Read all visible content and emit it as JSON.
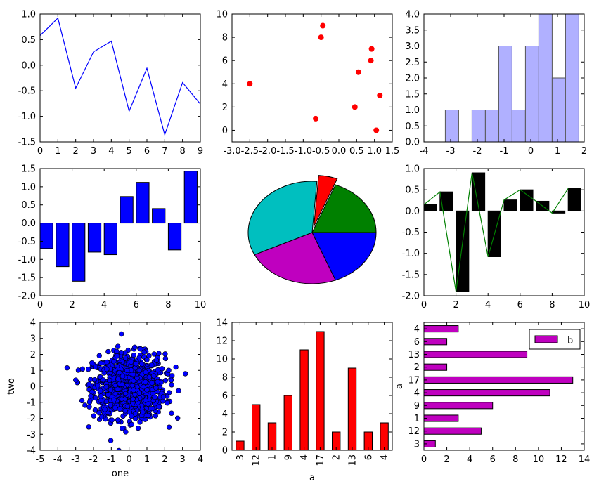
{
  "chart_data": [
    {
      "type": "line",
      "x": [
        0,
        1,
        2,
        3,
        4,
        5,
        6,
        7,
        8,
        9
      ],
      "series": [
        {
          "values": [
            0.58,
            0.92,
            -0.45,
            0.26,
            0.47,
            -0.9,
            -0.06,
            -1.36,
            -0.34,
            -0.76
          ],
          "color": "#0000ff"
        }
      ],
      "xlim": [
        0,
        9
      ],
      "ylim": [
        -1.5,
        1.0
      ],
      "xticks": [
        0,
        1,
        2,
        3,
        4,
        5,
        6,
        7,
        8,
        9
      ],
      "yticks": [
        -1.5,
        -1.0,
        -0.5,
        0.0,
        0.5,
        1.0
      ]
    },
    {
      "type": "scatter",
      "x": [
        -2.5,
        -0.65,
        -0.5,
        -0.45,
        0.45,
        0.55,
        0.9,
        0.92,
        1.05,
        1.15
      ],
      "y": [
        4,
        1,
        8,
        9,
        2,
        5,
        6,
        7,
        0,
        3
      ],
      "color": "#ff0000",
      "xlim": [
        -3.0,
        1.5
      ],
      "ylim": [
        -1,
        10
      ],
      "xticks": [
        -3.0,
        -2.5,
        -2.0,
        -1.5,
        -1.0,
        -0.5,
        0.0,
        0.5,
        1.0,
        1.5
      ],
      "yticks": [
        0,
        2,
        4,
        6,
        8,
        10
      ]
    },
    {
      "type": "bar",
      "subtype": "histogram",
      "bins": [
        [
          -3.2,
          -2.7
        ],
        [
          -2.7,
          -2.2
        ],
        [
          -2.2,
          -1.7
        ],
        [
          -1.7,
          -1.2
        ],
        [
          -1.2,
          -0.7
        ],
        [
          -0.7,
          -0.2
        ],
        [
          -0.2,
          0.3
        ],
        [
          0.3,
          0.8
        ],
        [
          0.8,
          1.3
        ],
        [
          1.3,
          1.8
        ]
      ],
      "values": [
        1,
        0,
        1,
        1,
        3,
        1,
        3,
        4,
        2,
        4
      ],
      "color": "#b0b0ff",
      "xlim": [
        -4,
        2
      ],
      "ylim": [
        0,
        4.0
      ],
      "xticks": [
        -4,
        -3,
        -2,
        -1,
        0,
        1,
        2
      ],
      "yticks": [
        0.0,
        0.5,
        1.0,
        1.5,
        2.0,
        2.5,
        3.0,
        3.5,
        4.0
      ]
    },
    {
      "type": "bar",
      "x": [
        0,
        1,
        2,
        3,
        4,
        5,
        6,
        7,
        8,
        9
      ],
      "values": [
        -0.7,
        -1.2,
        -1.6,
        -0.8,
        -0.87,
        0.73,
        1.12,
        0.4,
        -0.74,
        1.43
      ],
      "color": "#0000ff",
      "xlim": [
        0,
        10
      ],
      "ylim": [
        -2.0,
        1.5
      ],
      "xticks": [
        0,
        2,
        4,
        6,
        8,
        10
      ],
      "yticks": [
        -2.0,
        -1.5,
        -1.0,
        -0.5,
        0.0,
        0.5,
        1.0,
        1.5
      ]
    },
    {
      "type": "pie",
      "values": [
        20,
        25,
        35,
        5,
        20
      ],
      "colors": [
        "#0000ff",
        "#bf00bf",
        "#00bfbf",
        "#ff0000",
        "#008000"
      ],
      "explode": [
        0,
        0,
        0,
        1,
        0
      ]
    },
    {
      "type": "bar",
      "x": [
        0,
        1,
        2,
        3,
        4,
        5,
        6,
        7,
        8,
        9
      ],
      "values": [
        0.15,
        0.45,
        -1.9,
        0.9,
        -1.08,
        0.26,
        0.5,
        0.23,
        -0.05,
        0.53
      ],
      "color": "#000000",
      "line": {
        "values": [
          0.15,
          0.45,
          -1.9,
          0.9,
          -1.08,
          0.26,
          0.5,
          0.23,
          -0.05,
          0.53
        ],
        "color": "#008000"
      },
      "xlim": [
        0,
        10
      ],
      "ylim": [
        -2.0,
        1.0
      ],
      "xticks": [
        0,
        2,
        4,
        6,
        8,
        10
      ],
      "yticks": [
        -2.0,
        -1.5,
        -1.0,
        -0.5,
        0.0,
        0.5,
        1.0
      ]
    },
    {
      "type": "scatter",
      "n_points": 1000,
      "distribution": "standard normal",
      "color": "#0000ff",
      "xlabel": "one",
      "ylabel": "two",
      "xlim": [
        -5,
        4
      ],
      "ylim": [
        -4,
        4
      ],
      "xticks": [
        -5,
        -4,
        -3,
        -2,
        -1,
        0,
        1,
        2,
        3,
        4
      ],
      "yticks": [
        -4,
        -3,
        -2,
        -1,
        0,
        1,
        2,
        3,
        4
      ]
    },
    {
      "type": "bar",
      "categories": [
        "3",
        "12",
        "1",
        "9",
        "4",
        "17",
        "2",
        "13",
        "6",
        "4"
      ],
      "values": [
        1,
        5,
        3,
        6,
        11,
        13,
        2,
        9,
        2,
        3
      ],
      "color": "#ff0000",
      "xlabel": "a",
      "ylim": [
        0,
        14
      ],
      "yticks": [
        0,
        2,
        4,
        6,
        8,
        10,
        12,
        14
      ]
    },
    {
      "type": "bar",
      "orientation": "horizontal",
      "categories": [
        "3",
        "12",
        "1",
        "9",
        "4",
        "17",
        "2",
        "13",
        "6",
        "4"
      ],
      "values": [
        1,
        5,
        3,
        6,
        11,
        13,
        2,
        9,
        2,
        3
      ],
      "color": "#bf00bf",
      "ylabel": "a",
      "legend": {
        "entries": [
          "b"
        ],
        "position": "top-right"
      },
      "xlim": [
        0,
        14
      ],
      "xticks": [
        0,
        2,
        4,
        6,
        8,
        10,
        12,
        14
      ]
    }
  ]
}
